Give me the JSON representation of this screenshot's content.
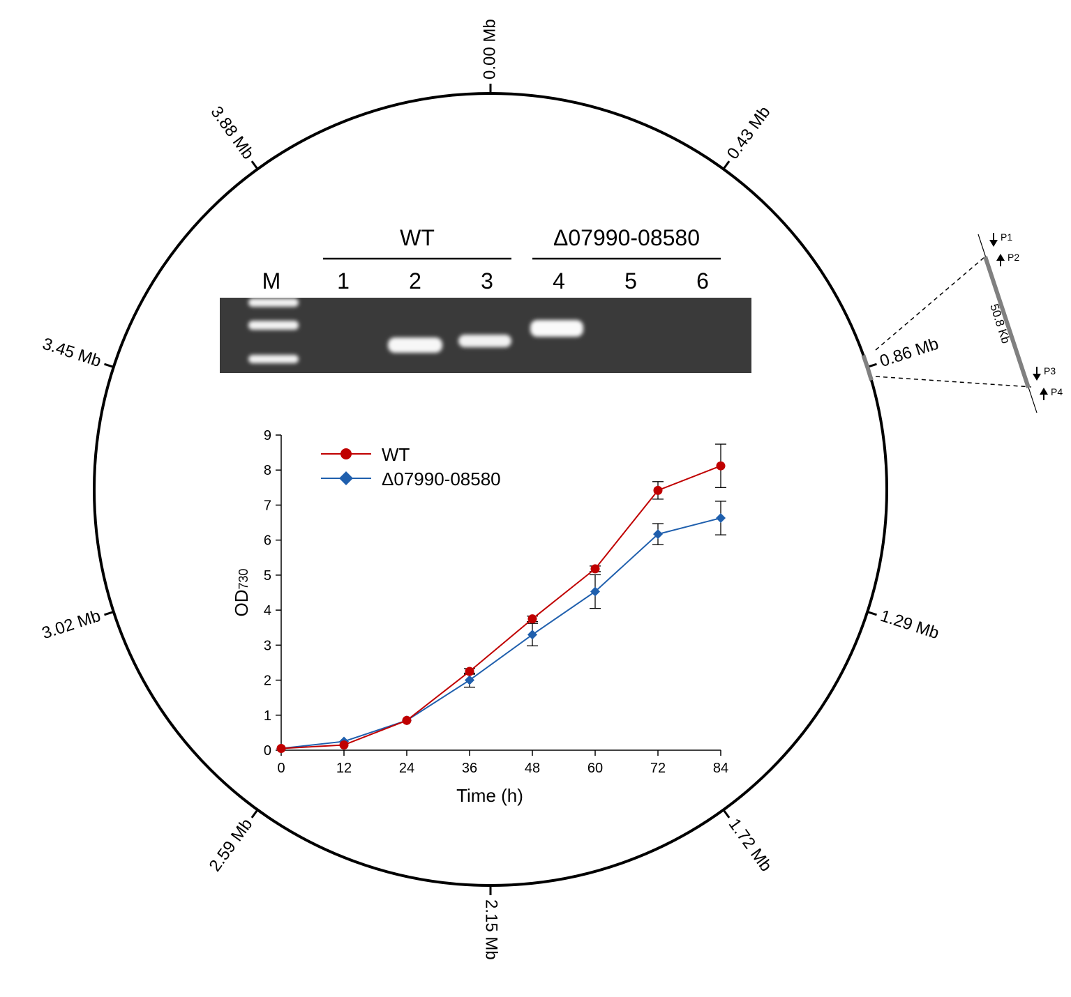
{
  "genome_map": {
    "ticks": [
      {
        "label": "0.00 Mb",
        "angle": 0
      },
      {
        "label": "0.43 Mb",
        "angle": 36
      },
      {
        "label": "0.86 Mb",
        "angle": 72
      },
      {
        "label": "1.29 Mb",
        "angle": 108
      },
      {
        "label": "1.72 Mb",
        "angle": 144
      },
      {
        "label": "2.15 Mb",
        "angle": 180
      },
      {
        "label": "2.59 Mb",
        "angle": 216
      },
      {
        "label": "3.02 Mb",
        "angle": 252
      },
      {
        "label": "3.45 Mb",
        "angle": 288
      },
      {
        "label": "3.88 Mb",
        "angle": 324
      }
    ],
    "deletion_region": {
      "size_label": "50.8 Kb",
      "primers": [
        "P1",
        "P2",
        "P3",
        "P4"
      ],
      "color": "#808080"
    }
  },
  "gel": {
    "group_labels": [
      "WT",
      "Δ07990-08580"
    ],
    "lanes": [
      "M",
      "1",
      "2",
      "3",
      "4",
      "5",
      "6"
    ]
  },
  "chart_data": {
    "type": "line",
    "xlabel": "Time (h)",
    "ylabel_main": "OD",
    "ylabel_sub": "730",
    "x": [
      0,
      12,
      24,
      36,
      48,
      60,
      72,
      84
    ],
    "xlim": [
      0,
      84
    ],
    "ylim": [
      0,
      9
    ],
    "xticks": [
      0,
      12,
      24,
      36,
      48,
      60,
      72,
      84
    ],
    "yticks": [
      0,
      1,
      2,
      3,
      4,
      5,
      6,
      7,
      8,
      9
    ],
    "legend_position": "top-left",
    "series": [
      {
        "name": "WT",
        "marker": "circle",
        "color": "#c00000",
        "values": [
          0.05,
          0.15,
          0.85,
          2.25,
          3.75,
          5.18,
          7.42,
          8.12
        ],
        "errors": [
          0.02,
          0.03,
          0.05,
          0.08,
          0.08,
          0.08,
          0.25,
          0.62
        ]
      },
      {
        "name": "Δ07990-08580",
        "marker": "diamond",
        "color": "#1f5fad",
        "values": [
          0.05,
          0.25,
          0.85,
          2.0,
          3.3,
          4.53,
          6.17,
          6.63
        ],
        "errors": [
          0.02,
          0.03,
          0.05,
          0.2,
          0.32,
          0.48,
          0.3,
          0.48
        ]
      }
    ]
  }
}
